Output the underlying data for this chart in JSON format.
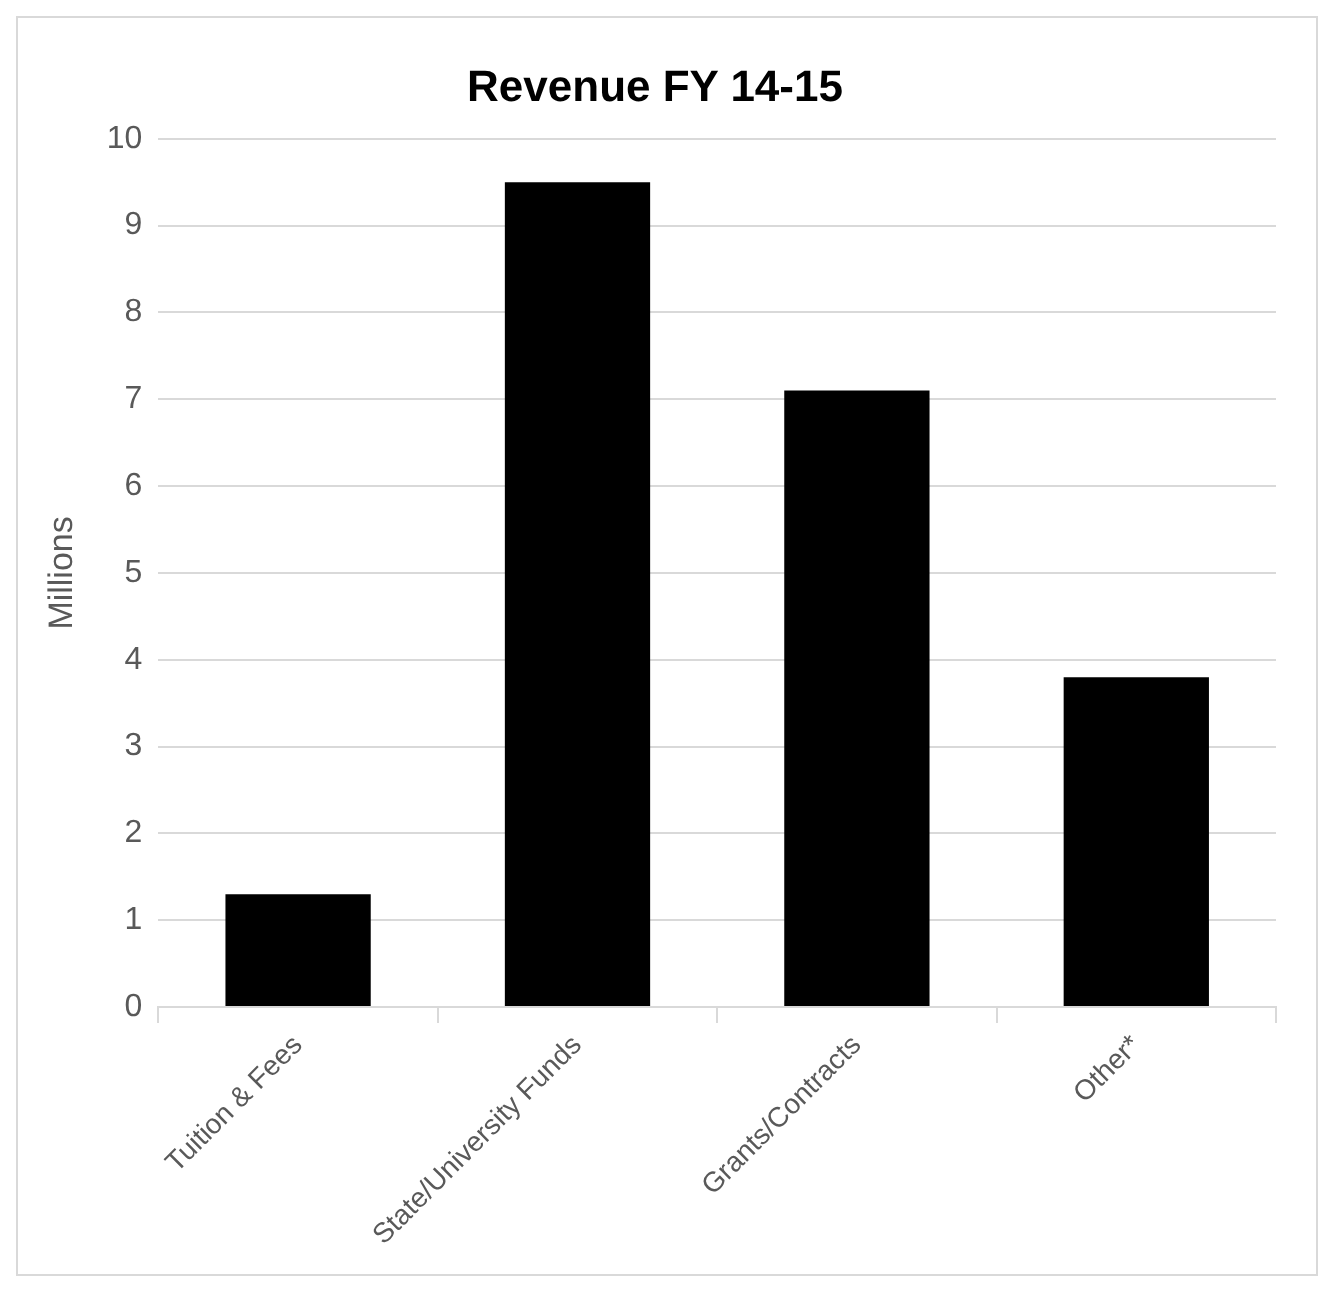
{
  "chart_data": {
    "type": "bar",
    "title": "Revenue FY 14-15",
    "ylabel": "Millions",
    "categories": [
      "Tuition & Fees",
      "State/University Funds",
      "Grants/Contracts",
      "Other*"
    ],
    "values": [
      1.3,
      9.5,
      7.1,
      3.8
    ],
    "color": "#000000",
    "ylim": [
      0,
      10
    ],
    "yticks": [
      0,
      1,
      2,
      3,
      4,
      5,
      6,
      7,
      8,
      9,
      10
    ],
    "grid": "y"
  }
}
